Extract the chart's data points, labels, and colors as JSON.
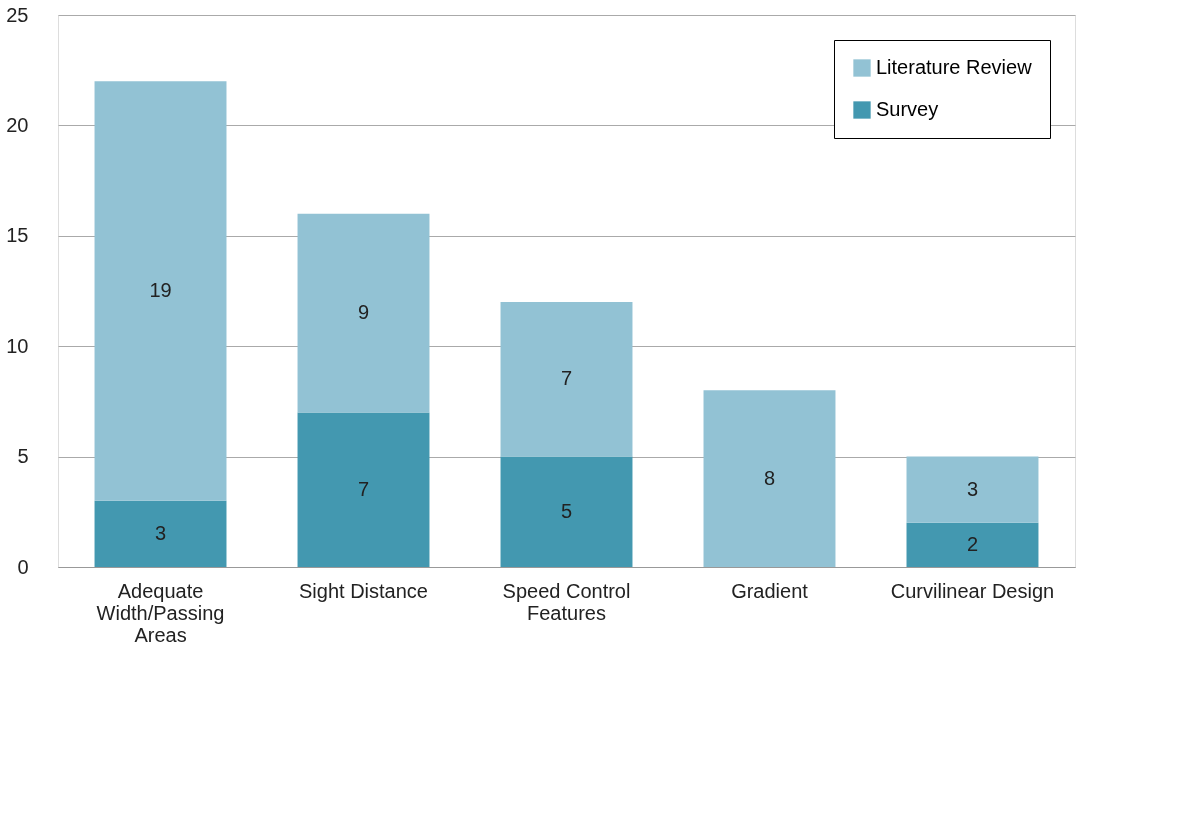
{
  "chart_data": {
    "type": "bar",
    "stacked": true,
    "categories": [
      "Adequate Width/Passing Areas",
      "Sight Distance",
      "Speed Control Features",
      "Gradient",
      "Curvilinear Design"
    ],
    "series": [
      {
        "name": "Survey",
        "color": "#4398b0",
        "values": [
          3,
          7,
          5,
          null,
          2
        ]
      },
      {
        "name": "Literature Review",
        "color": "#92c2d4",
        "values": [
          19,
          9,
          7,
          8,
          3
        ]
      }
    ],
    "ylim": [
      0,
      25
    ],
    "yticks": [
      0,
      5,
      10,
      15,
      20,
      25
    ],
    "grid": "y",
    "legend": "top right",
    "data_labels": true
  }
}
